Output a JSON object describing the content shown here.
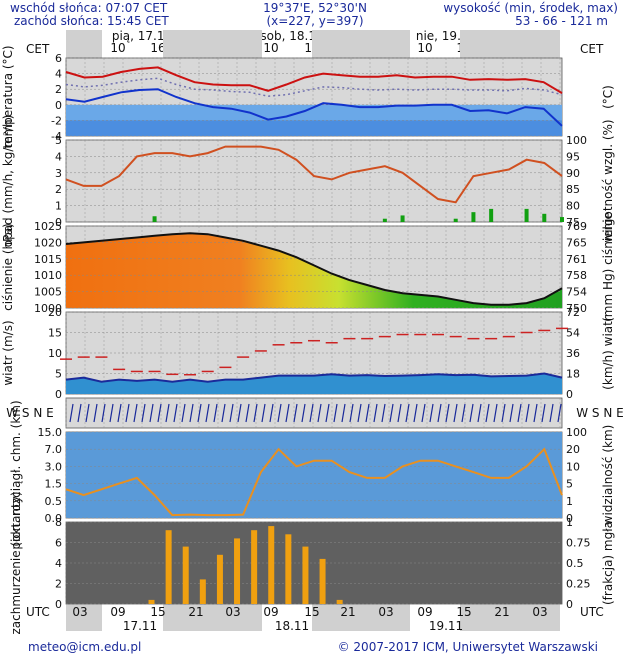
{
  "header": {
    "sunrise": "wschód słońca: 07:07 CET",
    "sunset": "zachód słońca: 15:45 CET",
    "coord1": "19°37'E, 52°30'N",
    "coord2": "(x=227, y=397)",
    "alt_title": "wysokość (min, środek, max)",
    "alt_values": "53 - 66 - 121 m"
  },
  "footer": {
    "email": "meteo@icm.edu.pl",
    "copyright": "© 2007-2017 ICM, Uniwersytet Warszawski"
  },
  "top_axis": {
    "tz": "CET",
    "hours": [
      "04",
      "10",
      "16",
      "22",
      "04",
      "10",
      "16",
      "22",
      "04",
      "10",
      "16",
      "22",
      "04"
    ],
    "days": [
      "pią, 17.11",
      "sob, 18.11",
      "nie, 19.11"
    ]
  },
  "bottom_axis": {
    "tz": "UTC",
    "hours": [
      "03",
      "09",
      "15",
      "21",
      "03",
      "09",
      "15",
      "21",
      "03",
      "09",
      "15",
      "21",
      "03"
    ],
    "dates": [
      "17.11",
      "18.11",
      "19.11"
    ]
  },
  "colors": {
    "panel_bg": "#d8d8d8",
    "night": "#c8c8c8",
    "temp_max": "#cc1111",
    "temp_min": "#1133cc",
    "humidity": "#d05020",
    "precip": "#11a011",
    "pressure_line": "#111111",
    "wind_mean": "#1a2a9a",
    "gust": "#cc2222",
    "visibility": "#e89020",
    "fog": "#f0a010"
  },
  "chart_data": [
    {
      "type": "line",
      "title": "temperatura",
      "ylabel": "temperatura (°C)",
      "y2label": "(°C)",
      "ylim": [
        -4,
        6
      ],
      "yticks": [
        "6",
        "4",
        "2",
        "0",
        "-2",
        "-4"
      ],
      "series": [
        {
          "name": "max",
          "values": [
            4.2,
            3.5,
            3.6,
            4.2,
            4.6,
            4.8,
            3.8,
            2.9,
            2.6,
            2.5,
            2.5,
            1.8,
            2.6,
            3.5,
            4.0,
            3.8,
            3.6,
            3.6,
            3.8,
            3.5,
            3.6,
            3.6,
            3.2,
            3.3,
            3.2,
            3.3,
            2.9,
            1.5
          ]
        },
        {
          "name": "mean",
          "values": [
            2.6,
            2.3,
            2.5,
            2.9,
            3.2,
            3.4,
            2.6,
            2.0,
            1.9,
            1.7,
            1.6,
            1.1,
            1.3,
            1.8,
            2.3,
            2.2,
            2.0,
            1.9,
            2.0,
            1.9,
            2.0,
            2.0,
            1.9,
            1.9,
            1.8,
            2.1,
            1.9,
            1.3
          ]
        },
        {
          "name": "min",
          "values": [
            0.7,
            0.4,
            1.0,
            1.6,
            1.9,
            2.0,
            1.0,
            0.2,
            -0.3,
            -0.5,
            -1.0,
            -1.9,
            -1.5,
            -0.8,
            0.2,
            0.0,
            -0.3,
            -0.3,
            -0.1,
            -0.1,
            0.0,
            0.0,
            -0.8,
            -0.7,
            -1.1,
            -0.3,
            -0.5,
            -2.7
          ]
        }
      ]
    },
    {
      "type": "bar",
      "title": "opad",
      "ylabel": "opad (mm/h, kg/m²/h)",
      "y2label": "wilgotność wzgl. (%)",
      "ylim": [
        0,
        5
      ],
      "y2lim": [
        75,
        100
      ],
      "yticks": [
        "5",
        "4",
        "3",
        "2",
        "1",
        "0"
      ],
      "y2ticks": [
        "100",
        "95",
        "90",
        "85",
        "80",
        "75"
      ],
      "precip": [
        0,
        0,
        0,
        0,
        0,
        0.35,
        0,
        0,
        0,
        0,
        0,
        0,
        0,
        0,
        0,
        0,
        0,
        0,
        0.2,
        0.4,
        0,
        0,
        0.2,
        0.6,
        0.8,
        0,
        0.8,
        0.5,
        0.3
      ],
      "humidity": [
        88,
        86,
        86,
        89,
        95,
        96,
        96,
        95,
        96,
        98,
        98,
        98,
        97,
        94,
        89,
        88,
        90,
        91,
        92,
        90,
        86,
        82,
        81,
        89,
        90,
        91,
        94,
        93,
        89
      ]
    },
    {
      "type": "area",
      "title": "ciśnienie",
      "ylabel": "ciśnienie (hPa)",
      "y2label": "(mm Hg) ciśnienie",
      "ylim": [
        1000,
        1025
      ],
      "y2lim": [
        750,
        769
      ],
      "yticks": [
        "1025",
        "1020",
        "1015",
        "1010",
        "1005",
        "1000"
      ],
      "y2ticks": [
        "769",
        "765",
        "761",
        "758",
        "754",
        "750"
      ],
      "values": [
        1019.5,
        1020,
        1020.5,
        1021,
        1021.5,
        1022,
        1022.5,
        1022.8,
        1022.5,
        1021.5,
        1020.5,
        1019,
        1017.5,
        1015.5,
        1013,
        1010.5,
        1008.5,
        1007,
        1005.5,
        1004.5,
        1004,
        1003.5,
        1002.5,
        1001.5,
        1001,
        1001,
        1001.5,
        1003,
        1006
      ]
    },
    {
      "type": "line",
      "title": "wiatr",
      "ylabel": "wiatr (m/s)",
      "y2label": "(km/h) wiatr",
      "ylim": [
        0,
        20
      ],
      "y2lim": [
        0,
        72
      ],
      "yticks": [
        "20",
        "15",
        "10",
        "5",
        "0"
      ],
      "y2ticks": [
        "72",
        "54",
        "36",
        "18",
        "0"
      ],
      "series": [
        {
          "name": "mean",
          "values": [
            3.5,
            4.0,
            3.0,
            3.5,
            3.2,
            3.5,
            3.0,
            3.5,
            3.0,
            3.5,
            3.5,
            4.0,
            4.5,
            4.5,
            4.5,
            4.8,
            4.5,
            4.6,
            4.4,
            4.5,
            4.6,
            4.8,
            4.6,
            4.7,
            4.3,
            4.4,
            4.5,
            5.0,
            4.0
          ]
        },
        {
          "name": "gust",
          "values": [
            8.5,
            9.0,
            9.0,
            6.0,
            5.5,
            5.5,
            4.8,
            4.7,
            5.5,
            6.5,
            9.0,
            10.5,
            12.0,
            12.5,
            13.0,
            12.5,
            13.5,
            13.5,
            14.0,
            14.5,
            14.5,
            14.5,
            14.0,
            13.5,
            13.5,
            14.0,
            15.0,
            15.5,
            16.0
          ]
        }
      ]
    },
    {
      "type": "scatter",
      "title": "kierunek wiatru",
      "ylabel": "W S N E"
    },
    {
      "type": "scatter",
      "title": "widzialność",
      "ylabel": "pion. rozciągł. chm. (km)",
      "y2label": "widzialność (km)",
      "ylim": [
        0,
        15
      ],
      "y2lim": [
        0,
        100
      ],
      "yticks": [
        "15.0",
        "7.0",
        "3.0",
        "1.5",
        "0.5",
        "0.0"
      ],
      "y2ticks": [
        "100",
        "20",
        "10",
        "5",
        "1",
        "0"
      ],
      "visibility": [
        5,
        4,
        5,
        6,
        7,
        4,
        0.5,
        0.6,
        0.5,
        0.5,
        0.6,
        8,
        12,
        9,
        10,
        10,
        8,
        7,
        7,
        9,
        10,
        10,
        9,
        8,
        7,
        7,
        9,
        12,
        4
      ]
    },
    {
      "type": "area",
      "title": "zachmurzenie",
      "ylabel": "zachmurzenie (oktanty)",
      "y2label": "(frakcja) mgła",
      "ylim": [
        0,
        8
      ],
      "y2lim": [
        0,
        1
      ],
      "yticks": [
        "8",
        "6",
        "4",
        "2",
        "0"
      ],
      "y2ticks": [
        "1",
        "0.75",
        "0.5",
        "0.25",
        "0"
      ],
      "fog": [
        0,
        0,
        0,
        0,
        0,
        0.05,
        0.9,
        0.7,
        0.3,
        0.6,
        0.8,
        0.9,
        0.95,
        0.85,
        0.7,
        0.55,
        0.05,
        0,
        0,
        0,
        0,
        0,
        0,
        0,
        0,
        0,
        0,
        0,
        0,
        0
      ]
    }
  ]
}
